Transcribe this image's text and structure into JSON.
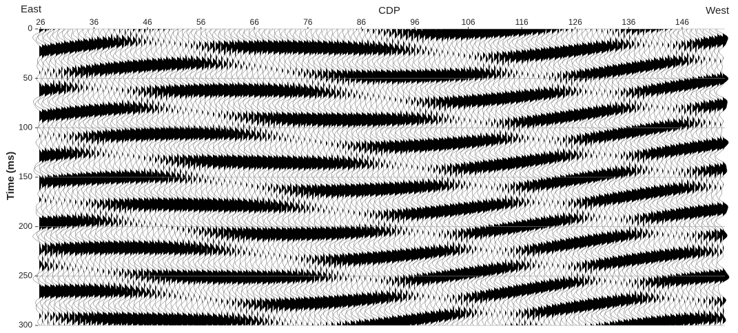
{
  "chart_data": {
    "type": "seismic",
    "x_label": "CDP",
    "left_label": "East",
    "right_label": "West",
    "y_label": "Time (ms)",
    "xlim": [
      25.5,
      154
    ],
    "xticks": [
      26,
      36,
      46,
      56,
      66,
      76,
      86,
      96,
      106,
      116,
      126,
      136,
      146
    ],
    "ylim": [
      0,
      300
    ],
    "yticks": [
      0,
      50,
      100,
      150,
      200,
      250,
      300
    ],
    "grid": true
  }
}
